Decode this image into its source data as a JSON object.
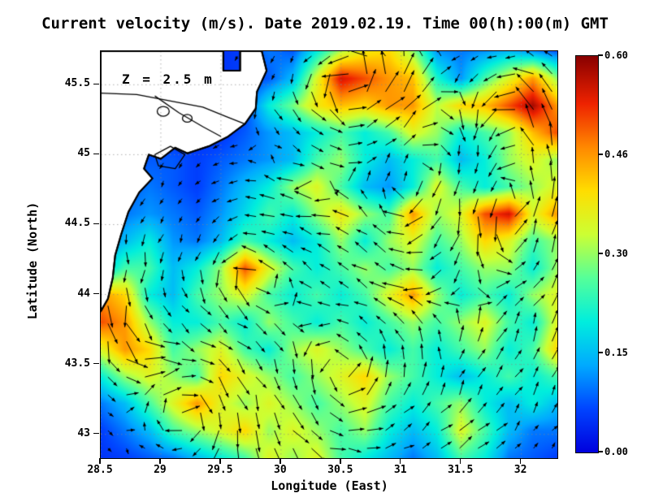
{
  "title": "Current velocity (m/s). Date 2019.02.19. Time 00(h):00(m) GMT",
  "annotation": "Z = 2.5 m",
  "axes": {
    "xlabel": "Longitude (East)",
    "ylabel": "Latitude (North)",
    "xlim": [
      28.5,
      32.3
    ],
    "ylim": [
      42.83,
      45.74
    ],
    "x_ticks": [
      {
        "label": "28.5",
        "value": 28.5
      },
      {
        "label": "29",
        "value": 29
      },
      {
        "label": "29.5",
        "value": 29.5
      },
      {
        "label": "30",
        "value": 30
      },
      {
        "label": "30.5",
        "value": 30.5
      },
      {
        "label": "31",
        "value": 31
      },
      {
        "label": "31.5",
        "value": 31.5
      },
      {
        "label": "32",
        "value": 32
      }
    ],
    "y_ticks": [
      {
        "label": "43",
        "value": 43
      },
      {
        "label": "43.5",
        "value": 43.5
      },
      {
        "label": "44",
        "value": 44
      },
      {
        "label": "44.5",
        "value": 44.5
      },
      {
        "label": "45",
        "value": 45
      },
      {
        "label": "45.5",
        "value": 45.5
      }
    ]
  },
  "colorbar": {
    "min": 0.0,
    "max": 0.6,
    "labels": [
      "0.60",
      "0.46",
      "0.30",
      "0.15",
      "0.00"
    ]
  },
  "colormap": [
    [
      0.0,
      "#0000DD"
    ],
    [
      0.11,
      "#0044FF"
    ],
    [
      0.22,
      "#00AAFF"
    ],
    [
      0.33,
      "#00EEDD"
    ],
    [
      0.44,
      "#55FF99"
    ],
    [
      0.55,
      "#CCFF33"
    ],
    [
      0.66,
      "#FFDD00"
    ],
    [
      0.77,
      "#FF8800"
    ],
    [
      0.88,
      "#EE2200"
    ],
    [
      1.0,
      "#880000"
    ]
  ],
  "chart_data": {
    "type": "heatmap",
    "units": "m/s",
    "title": "Current velocity (m/s). Date 2019.02.19. Time 00(h):00(m) GMT",
    "xlabel": "Longitude (East)",
    "ylabel": "Latitude (North)",
    "xlim": [
      28.5,
      32.3
    ],
    "ylim": [
      42.83,
      45.74
    ],
    "zlim": [
      0.0,
      0.6
    ],
    "x": [
      28.5,
      28.7,
      28.9,
      29.1,
      29.3,
      29.5,
      29.7,
      29.9,
      30.1,
      30.3,
      30.5,
      30.7,
      30.9,
      31.1,
      31.3,
      31.5,
      31.7,
      31.9,
      32.1,
      32.3
    ],
    "y": [
      45.74,
      45.55,
      45.35,
      45.16,
      44.96,
      44.77,
      44.57,
      44.38,
      44.19,
      43.99,
      43.8,
      43.6,
      43.41,
      43.22,
      43.02,
      42.83
    ],
    "values": [
      [
        0.05,
        0.05,
        0.05,
        0.05,
        0.05,
        0.05,
        0.06,
        0.1,
        0.08,
        0.2,
        0.32,
        0.38,
        0.4,
        0.3,
        0.12,
        0.1,
        0.12,
        0.15,
        0.12,
        0.08
      ],
      [
        0.05,
        0.05,
        0.05,
        0.05,
        0.05,
        0.05,
        0.06,
        0.08,
        0.15,
        0.35,
        0.55,
        0.5,
        0.45,
        0.42,
        0.22,
        0.12,
        0.25,
        0.35,
        0.45,
        0.3
      ],
      [
        0.05,
        0.05,
        0.05,
        0.05,
        0.05,
        0.05,
        0.06,
        0.2,
        0.28,
        0.38,
        0.42,
        0.4,
        0.45,
        0.45,
        0.32,
        0.4,
        0.42,
        0.5,
        0.58,
        0.45
      ],
      [
        0.05,
        0.05,
        0.05,
        0.05,
        0.05,
        0.05,
        0.08,
        0.12,
        0.15,
        0.2,
        0.25,
        0.2,
        0.25,
        0.35,
        0.3,
        0.2,
        0.25,
        0.3,
        0.42,
        0.5
      ],
      [
        0.05,
        0.06,
        0.08,
        0.08,
        0.06,
        0.08,
        0.1,
        0.12,
        0.15,
        0.25,
        0.3,
        0.2,
        0.15,
        0.2,
        0.25,
        0.15,
        0.2,
        0.3,
        0.35,
        0.3
      ],
      [
        0.06,
        0.08,
        0.1,
        0.08,
        0.06,
        0.1,
        0.15,
        0.2,
        0.3,
        0.35,
        0.25,
        0.15,
        0.12,
        0.2,
        0.35,
        0.25,
        0.2,
        0.25,
        0.3,
        0.35
      ],
      [
        0.08,
        0.1,
        0.12,
        0.1,
        0.08,
        0.12,
        0.18,
        0.25,
        0.2,
        0.3,
        0.38,
        0.3,
        0.25,
        0.45,
        0.3,
        0.35,
        0.5,
        0.55,
        0.35,
        0.45
      ],
      [
        0.1,
        0.15,
        0.2,
        0.12,
        0.1,
        0.15,
        0.25,
        0.2,
        0.15,
        0.2,
        0.3,
        0.2,
        0.3,
        0.35,
        0.25,
        0.3,
        0.4,
        0.35,
        0.25,
        0.3
      ],
      [
        0.15,
        0.25,
        0.25,
        0.15,
        0.2,
        0.3,
        0.5,
        0.35,
        0.25,
        0.2,
        0.25,
        0.3,
        0.25,
        0.3,
        0.2,
        0.25,
        0.3,
        0.3,
        0.2,
        0.3
      ],
      [
        0.45,
        0.4,
        0.2,
        0.15,
        0.25,
        0.3,
        0.35,
        0.25,
        0.2,
        0.25,
        0.2,
        0.25,
        0.35,
        0.45,
        0.3,
        0.2,
        0.25,
        0.2,
        0.3,
        0.35
      ],
      [
        0.5,
        0.45,
        0.3,
        0.2,
        0.2,
        0.25,
        0.2,
        0.3,
        0.25,
        0.2,
        0.25,
        0.2,
        0.25,
        0.3,
        0.25,
        0.3,
        0.35,
        0.25,
        0.2,
        0.35
      ],
      [
        0.35,
        0.45,
        0.4,
        0.25,
        0.3,
        0.35,
        0.25,
        0.2,
        0.3,
        0.35,
        0.3,
        0.25,
        0.2,
        0.25,
        0.2,
        0.25,
        0.3,
        0.2,
        0.25,
        0.4
      ],
      [
        0.2,
        0.3,
        0.35,
        0.3,
        0.25,
        0.4,
        0.35,
        0.3,
        0.25,
        0.3,
        0.35,
        0.4,
        0.3,
        0.25,
        0.2,
        0.15,
        0.2,
        0.25,
        0.2,
        0.25
      ],
      [
        0.1,
        0.15,
        0.25,
        0.35,
        0.45,
        0.35,
        0.3,
        0.35,
        0.3,
        0.25,
        0.3,
        0.35,
        0.25,
        0.2,
        0.25,
        0.3,
        0.2,
        0.15,
        0.2,
        0.15
      ],
      [
        0.06,
        0.1,
        0.15,
        0.25,
        0.3,
        0.35,
        0.4,
        0.3,
        0.35,
        0.3,
        0.25,
        0.3,
        0.2,
        0.15,
        0.2,
        0.35,
        0.25,
        0.15,
        0.1,
        0.1
      ],
      [
        0.05,
        0.06,
        0.08,
        0.1,
        0.15,
        0.2,
        0.25,
        0.35,
        0.3,
        0.35,
        0.25,
        0.2,
        0.15,
        0.1,
        0.15,
        0.25,
        0.2,
        0.1,
        0.08,
        0.06
      ]
    ],
    "vector_field_eddies": [
      {
        "lon": 30.9,
        "lat": 44.0,
        "sigma": 1.8,
        "strength": -1.2
      },
      {
        "lon": 29.7,
        "lat": 44.2,
        "sigma": 0.35,
        "strength": -0.5
      },
      {
        "lon": 31.15,
        "lat": 44.6,
        "sigma": 0.4,
        "strength": 0.5
      },
      {
        "lon": 31.8,
        "lat": 44.6,
        "sigma": 0.35,
        "strength": -0.45
      },
      {
        "lon": 30.45,
        "lat": 43.35,
        "sigma": 0.5,
        "strength": -0.4
      },
      {
        "lon": 29.35,
        "lat": 43.2,
        "sigma": 0.35,
        "strength": 0.4
      },
      {
        "lon": 31.2,
        "lat": 45.05,
        "sigma": 0.4,
        "strength": 0.45
      },
      {
        "lon": 30.6,
        "lat": 45.5,
        "sigma": 0.45,
        "strength": -0.5
      },
      {
        "lon": 32.0,
        "lat": 45.3,
        "sigma": 0.4,
        "strength": -0.4
      },
      {
        "lon": 30.2,
        "lat": 44.85,
        "sigma": 0.35,
        "strength": 0.35
      }
    ],
    "coastline": [
      [
        28.5,
        45.74
      ],
      [
        29.52,
        45.74
      ],
      [
        29.52,
        45.6
      ],
      [
        29.66,
        45.6
      ],
      [
        29.66,
        45.74
      ],
      [
        29.84,
        45.74
      ],
      [
        29.88,
        45.6
      ],
      [
        29.8,
        45.45
      ],
      [
        29.79,
        45.33
      ],
      [
        29.7,
        45.22
      ],
      [
        29.56,
        45.13
      ],
      [
        29.4,
        45.06
      ],
      [
        29.22,
        45.01
      ],
      [
        29.12,
        45.05
      ],
      [
        29.0,
        44.97
      ],
      [
        28.9,
        45.0
      ],
      [
        28.86,
        44.9
      ],
      [
        28.93,
        44.83
      ],
      [
        28.82,
        44.73
      ],
      [
        28.73,
        44.59
      ],
      [
        28.67,
        44.43
      ],
      [
        28.62,
        44.28
      ],
      [
        28.6,
        44.12
      ],
      [
        28.56,
        43.97
      ],
      [
        28.5,
        43.88
      ]
    ],
    "land_lines": [
      [
        [
          28.5,
          45.44
        ],
        [
          28.8,
          45.43
        ],
        [
          29.1,
          45.38
        ],
        [
          29.35,
          45.34
        ],
        [
          29.55,
          45.27
        ],
        [
          29.7,
          45.22
        ]
      ],
      [
        [
          28.95,
          45.42
        ],
        [
          29.15,
          45.3
        ],
        [
          29.35,
          45.2
        ],
        [
          29.5,
          45.13
        ]
      ],
      [
        [
          28.95,
          45.0
        ],
        [
          29.08,
          45.06
        ],
        [
          29.2,
          45.0
        ],
        [
          29.12,
          44.9
        ],
        [
          28.98,
          44.92
        ],
        [
          28.95,
          45.0
        ]
      ]
    ],
    "land_lakes": [
      [
        29.02,
        45.31,
        0.05
      ],
      [
        29.22,
        45.26,
        0.04
      ]
    ]
  }
}
